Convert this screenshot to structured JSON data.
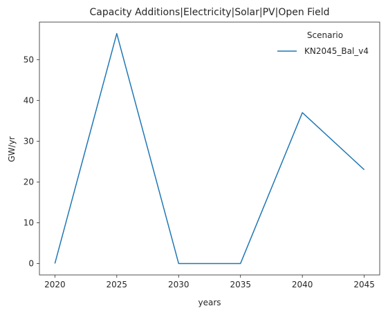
{
  "chart_data": {
    "type": "line",
    "title": "Capacity Additions|Electricity|Solar|PV|Open Field",
    "xlabel": "years",
    "ylabel": "GW/yr",
    "x": [
      2020,
      2025,
      2030,
      2035,
      2040,
      2045
    ],
    "x_ticks": [
      "2020",
      "2025",
      "2030",
      "2035",
      "2040",
      "2045"
    ],
    "y_ticks": [
      "0",
      "10",
      "20",
      "30",
      "40",
      "50"
    ],
    "xlim": [
      2018.75,
      2046.25
    ],
    "ylim": [
      -2.8,
      59.2
    ],
    "grid": false,
    "legend": {
      "title": "Scenario",
      "placement": "upper right"
    },
    "series": [
      {
        "name": "KN2045_Bal_v4",
        "color": "#1f77b4",
        "values": [
          0,
          56.4,
          0,
          0,
          37.0,
          23.0
        ]
      }
    ]
  }
}
